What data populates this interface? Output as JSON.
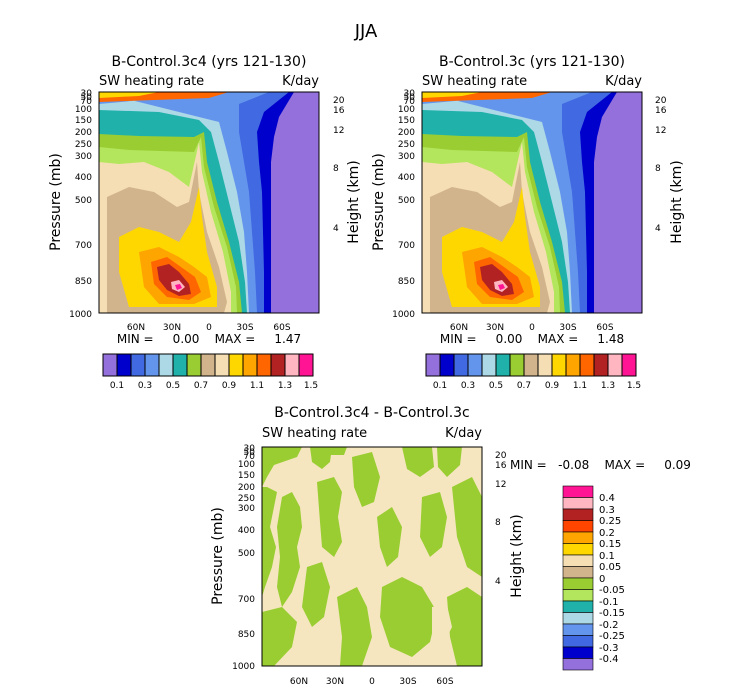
{
  "figure_title": "JJA",
  "chart_data": [
    {
      "type": "contour",
      "id": "panel1",
      "title": "B-Control.3c4 (yrs 121-130)",
      "left_label": "SW heating rate",
      "right_label": "K/day",
      "ylabel": "Pressure (mb)",
      "ylabel_right": "Height (km)",
      "x_ticks": [
        "60N",
        "30N",
        "0",
        "30S",
        "60S"
      ],
      "x_tick_values": [
        60,
        30,
        0,
        -30,
        -60
      ],
      "xlim": [
        90,
        -90
      ],
      "pressure_ticks": [
        30,
        50,
        70,
        100,
        150,
        200,
        250,
        300,
        400,
        500,
        700,
        850,
        1000
      ],
      "height_ticks": [
        20,
        16,
        12,
        8,
        4
      ],
      "ylim": [
        30,
        1000
      ],
      "stats": "MIN =     0.00    MAX =     1.47",
      "min": 0.0,
      "max": 1.47,
      "colorbar_levels": [
        0.1,
        0.2,
        0.3,
        0.4,
        0.5,
        0.6,
        0.7,
        0.8,
        0.9,
        1.0,
        1.1,
        1.2,
        1.3,
        1.4,
        1.5
      ],
      "colorbar_labels": [
        "0.1",
        "0.3",
        "0.5",
        "0.7",
        "0.9",
        "1.1",
        "1.3",
        "1.5"
      ]
    },
    {
      "type": "contour",
      "id": "panel2",
      "title": "B-Control.3c (yrs 121-130)",
      "left_label": "SW heating rate",
      "right_label": "K/day",
      "ylabel": "Pressure (mb)",
      "ylabel_right": "Height (km)",
      "x_ticks": [
        "60N",
        "30N",
        "0",
        "30S",
        "60S"
      ],
      "x_tick_values": [
        60,
        30,
        0,
        -30,
        -60
      ],
      "xlim": [
        90,
        -90
      ],
      "pressure_ticks": [
        30,
        50,
        70,
        100,
        150,
        200,
        250,
        300,
        400,
        500,
        700,
        850,
        1000
      ],
      "height_ticks": [
        20,
        16,
        12,
        8,
        4
      ],
      "ylim": [
        30,
        1000
      ],
      "stats": "MIN =     0.00    MAX =     1.48",
      "min": 0.0,
      "max": 1.48,
      "colorbar_levels": [
        0.1,
        0.2,
        0.3,
        0.4,
        0.5,
        0.6,
        0.7,
        0.8,
        0.9,
        1.0,
        1.1,
        1.2,
        1.3,
        1.4,
        1.5
      ],
      "colorbar_labels": [
        "0.1",
        "0.3",
        "0.5",
        "0.7",
        "0.9",
        "1.1",
        "1.3",
        "1.5"
      ]
    },
    {
      "type": "contour",
      "id": "panel3",
      "title": "B-Control.3c4 - B-Control.3c",
      "left_label": "SW heating rate",
      "right_label": "K/day",
      "ylabel": "Pressure (mb)",
      "ylabel_right": "Height (km)",
      "x_ticks": [
        "60N",
        "30N",
        "0",
        "30S",
        "60S"
      ],
      "x_tick_values": [
        60,
        30,
        0,
        -30,
        -60
      ],
      "xlim": [
        90,
        -90
      ],
      "pressure_ticks": [
        30,
        50,
        70,
        100,
        150,
        200,
        250,
        300,
        400,
        500,
        700,
        850,
        1000
      ],
      "height_ticks": [
        20,
        16,
        12,
        8,
        4
      ],
      "ylim": [
        30,
        1000
      ],
      "stats": "MIN =   -0.08    MAX =     0.09",
      "min": -0.08,
      "max": 0.09,
      "colorbar_labels": [
        "0.4",
        "0.3",
        "0.25",
        "0.2",
        "0.15",
        "0.1",
        "0.05",
        "0",
        "-0.05",
        "-0.1",
        "-0.15",
        "-0.2",
        "-0.25",
        "-0.3",
        "-0.4"
      ]
    }
  ],
  "colors": {
    "abs_scale": [
      "#9370db",
      "#0000cd",
      "#4169e1",
      "#6495ed",
      "#add8e6",
      "#20b2aa",
      "#9acd32",
      "#d2b48c",
      "#f5deb3",
      "#ffd700",
      "#ffa500",
      "#ff6600",
      "#b22222",
      "#ffb6c1",
      "#ff1493"
    ],
    "diff_scale": [
      "#ff1493",
      "#ffb6c1",
      "#b22222",
      "#ff4500",
      "#ffa500",
      "#ffd700",
      "#f5deb3",
      "#d2b48c",
      "#9acd32",
      "#b3e65c",
      "#20b2aa",
      "#add8e6",
      "#6495ed",
      "#4169e1",
      "#0000cd",
      "#9370db"
    ],
    "diff_pos": "#f5e6c0",
    "diff_neg": "#9acd32"
  }
}
